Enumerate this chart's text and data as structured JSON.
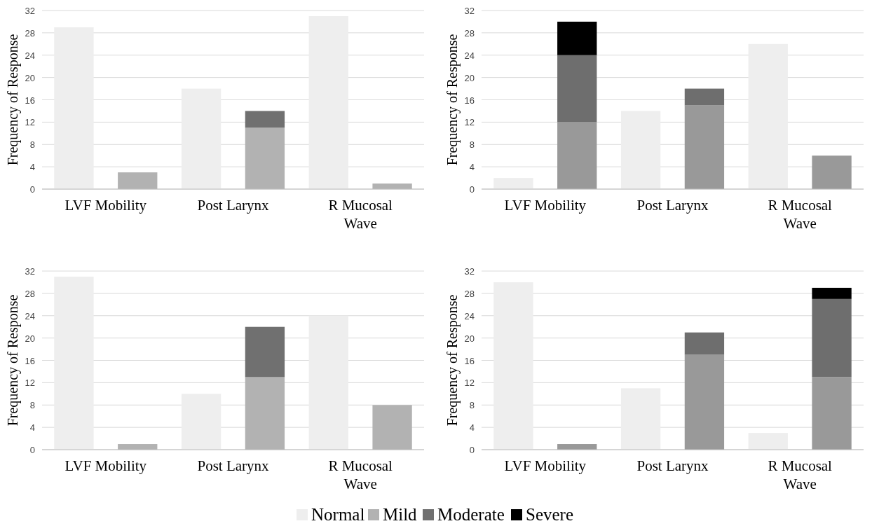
{
  "chart_data": [
    {
      "type": "bar",
      "stacked": true,
      "ylabel": "Frequency of Response",
      "categories": [
        "LVF Mobility",
        null,
        "Post Larynx",
        null,
        "R Mucosal Wave",
        null
      ],
      "ylim": [
        0,
        32
      ],
      "yticks": [
        0,
        4,
        8,
        12,
        16,
        20,
        24,
        28,
        32
      ],
      "grid": "y",
      "legend": "bottom",
      "series": [
        {
          "name": "Normal",
          "color": "#eeeeee",
          "values": [
            29,
            null,
            18,
            null,
            31,
            null
          ]
        },
        {
          "name": "Mild",
          "color": "#b2b2b2",
          "values": [
            null,
            3,
            null,
            11,
            null,
            1
          ]
        },
        {
          "name": "Moderate",
          "color": "#707070",
          "values": [
            null,
            0,
            null,
            3,
            null,
            0
          ]
        },
        {
          "name": "Severe",
          "color": "#000000",
          "values": [
            null,
            0,
            null,
            0,
            null,
            0
          ]
        }
      ]
    },
    {
      "type": "bar",
      "stacked": true,
      "ylabel": "Frequency of Response",
      "categories": [
        "LVF Mobility",
        null,
        "Post Larynx",
        null,
        "R Mucosal Wave",
        null
      ],
      "ylim": [
        0,
        32
      ],
      "yticks": [
        0,
        4,
        8,
        12,
        16,
        20,
        24,
        28,
        32
      ],
      "grid": "y",
      "series": [
        {
          "color": "#eeeeee",
          "values": [
            2,
            null,
            14,
            null,
            26,
            null
          ]
        },
        {
          "color": "#999999",
          "values": [
            null,
            12,
            null,
            15,
            null,
            6
          ]
        },
        {
          "color": "#6e6e6e",
          "values": [
            null,
            12,
            null,
            3,
            null,
            0
          ]
        },
        {
          "color": "#000000",
          "values": [
            null,
            6,
            null,
            0,
            null,
            0
          ]
        }
      ]
    },
    {
      "type": "bar",
      "stacked": true,
      "ylabel": "Frequency of Response",
      "categories": [
        "LVF Mobility",
        null,
        "Post Larynx",
        null,
        "R Mucosal Wave",
        null
      ],
      "ylim": [
        0,
        32
      ],
      "yticks": [
        0,
        4,
        8,
        12,
        16,
        20,
        24,
        28,
        32
      ],
      "grid": "y",
      "series": [
        {
          "color": "#eeeeee",
          "values": [
            31,
            null,
            10,
            null,
            24,
            null
          ]
        },
        {
          "color": "#b2b2b2",
          "values": [
            null,
            1,
            null,
            13,
            null,
            8
          ]
        },
        {
          "color": "#707070",
          "values": [
            null,
            0,
            null,
            9,
            null,
            0
          ]
        },
        {
          "color": "#000000",
          "values": [
            null,
            0,
            null,
            0,
            null,
            0
          ]
        }
      ]
    },
    {
      "type": "bar",
      "stacked": true,
      "ylabel": "Frequency of Response",
      "categories": [
        "LVF Mobility",
        null,
        "Post Larynx",
        null,
        "R Mucosal Wave",
        null
      ],
      "ylim": [
        0,
        32
      ],
      "yticks": [
        0,
        4,
        8,
        12,
        16,
        20,
        24,
        28,
        32
      ],
      "grid": "y",
      "series": [
        {
          "color": "#eeeeee",
          "values": [
            30,
            null,
            11,
            null,
            3,
            null
          ]
        },
        {
          "color": "#999999",
          "values": [
            null,
            1,
            null,
            17,
            null,
            13
          ]
        },
        {
          "color": "#6e6e6e",
          "values": [
            null,
            0,
            null,
            4,
            null,
            14
          ]
        },
        {
          "color": "#000000",
          "values": [
            null,
            0,
            null,
            0,
            null,
            2
          ]
        }
      ]
    }
  ]
}
